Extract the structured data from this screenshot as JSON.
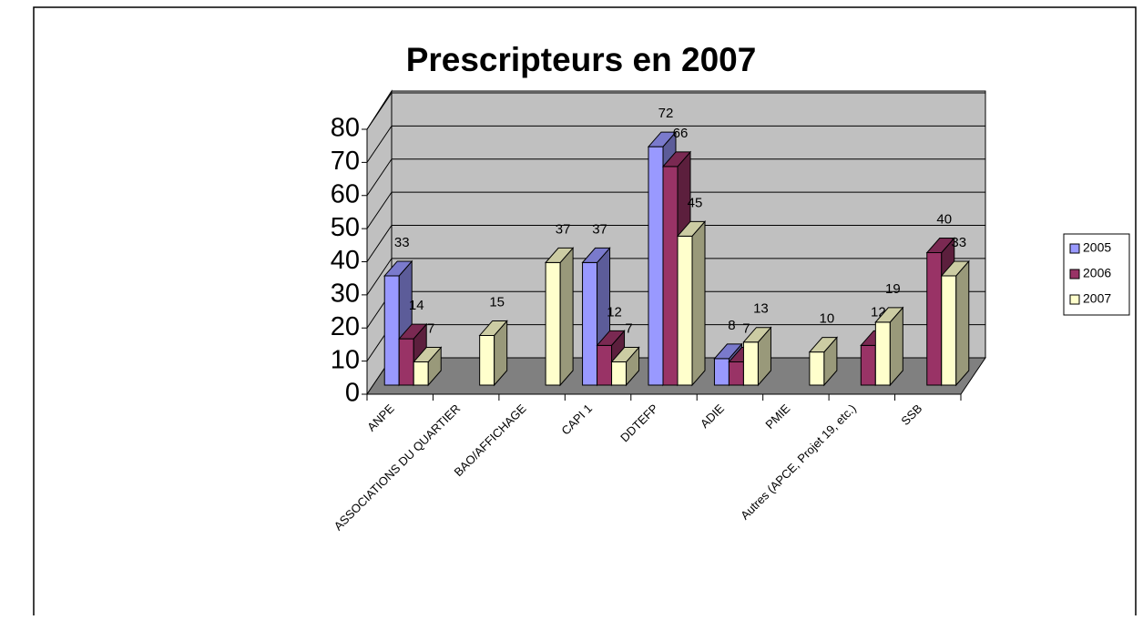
{
  "chart_data": {
    "type": "bar3d",
    "title": "Prescripteurs en 2007",
    "categories": [
      "ANPE",
      "ASSOCIATIONS DU QUARTIER",
      "BAO/AFFICHAGE",
      "CAPI 1",
      "DDTEFP",
      "ADIE",
      "PMIE",
      "Autres  (APCE, Projet 19, etc.)",
      "SSB"
    ],
    "series": [
      {
        "name": "2005",
        "color": "#9999ff",
        "values": [
          33,
          null,
          null,
          37,
          72,
          8,
          null,
          null,
          null
        ]
      },
      {
        "name": "2006",
        "color": "#993366",
        "values": [
          14,
          null,
          null,
          12,
          66,
          7,
          null,
          12,
          40
        ]
      },
      {
        "name": "2007",
        "color": "#ffffcc",
        "values": [
          7,
          15,
          37,
          7,
          45,
          13,
          10,
          19,
          33
        ]
      }
    ],
    "ylim": [
      0,
      80
    ],
    "yticks": [
      0,
      10,
      20,
      30,
      40,
      50,
      60,
      70,
      80
    ],
    "grid": true,
    "legend": "right"
  }
}
